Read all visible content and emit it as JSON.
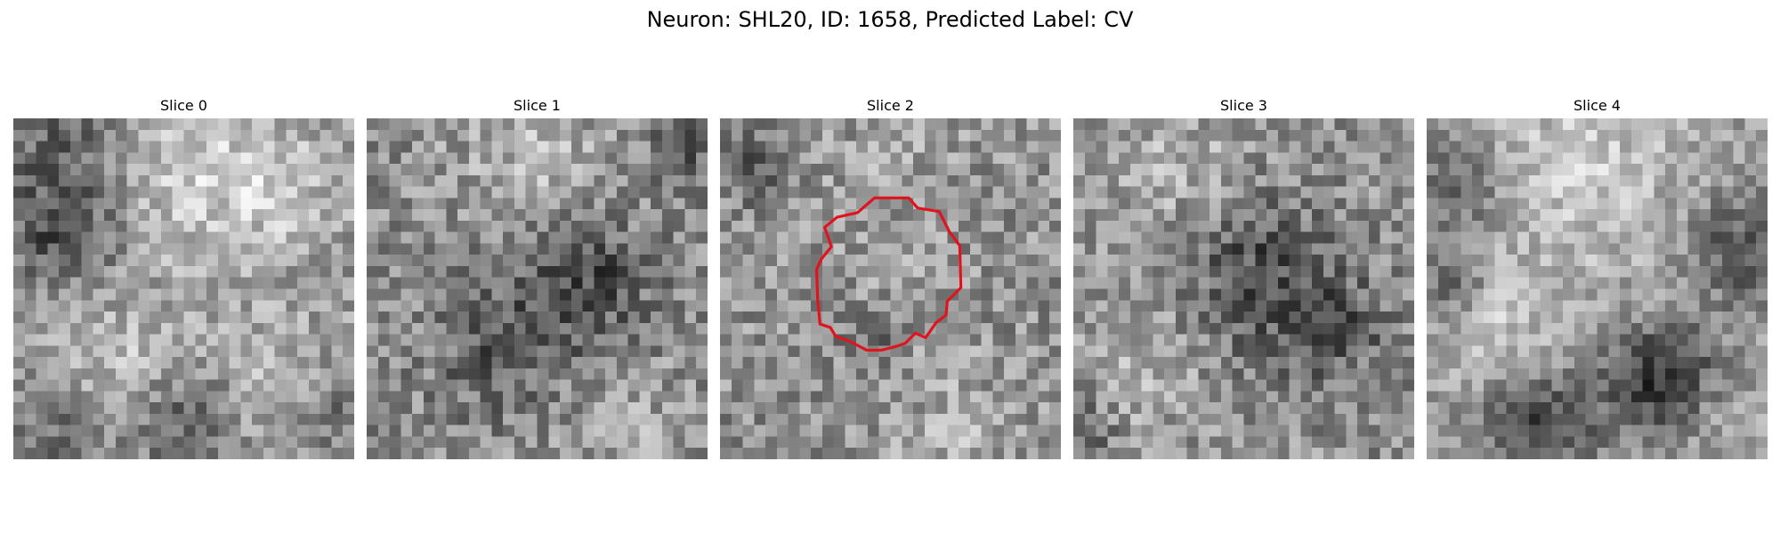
{
  "figure": {
    "title": "Neuron: SHL20, ID: 1658, Predicted Label: CV",
    "grid_size": 30,
    "colormap": "gray",
    "contour_color": "#e0141e",
    "panels": [
      {
        "title": "Slice 0",
        "seed": 11,
        "base": 150,
        "noise": 45,
        "blobs": [
          {
            "cx": 4,
            "cy": 2,
            "r": 5,
            "amp": -55
          },
          {
            "cx": 4,
            "cy": 10,
            "r": 3,
            "amp": -70
          },
          {
            "cx": 15,
            "cy": 4,
            "r": 6,
            "amp": 55
          },
          {
            "cx": 24,
            "cy": 6,
            "r": 4,
            "amp": 30
          },
          {
            "cx": 15,
            "cy": 26,
            "r": 3,
            "amp": -60
          },
          {
            "cx": 4,
            "cy": 27,
            "r": 3,
            "amp": -45
          },
          {
            "cx": 28,
            "cy": 25,
            "r": 3,
            "amp": -45
          },
          {
            "cx": 23,
            "cy": 23,
            "r": 4,
            "amp": 40
          },
          {
            "cx": 9,
            "cy": 21,
            "r": 4,
            "amp": 35
          }
        ]
      },
      {
        "title": "Slice 1",
        "seed": 23,
        "base": 140,
        "noise": 50,
        "blobs": [
          {
            "cx": 16,
            "cy": 16,
            "r": 5,
            "amp": -50
          },
          {
            "cx": 10,
            "cy": 21,
            "r": 3,
            "amp": -35
          },
          {
            "cx": 20,
            "cy": 13,
            "r": 3,
            "amp": -35
          },
          {
            "cx": 14,
            "cy": 3,
            "r": 5,
            "amp": 40
          },
          {
            "cx": 22,
            "cy": 26,
            "r": 4,
            "amp": 30
          },
          {
            "cx": 27,
            "cy": 2,
            "r": 2,
            "amp": -50
          }
        ]
      },
      {
        "title": "Slice 2",
        "seed": 37,
        "base": 145,
        "noise": 50,
        "blobs": [
          {
            "cx": 15,
            "cy": 14,
            "r": 5,
            "amp": 10
          },
          {
            "cx": 13,
            "cy": 19,
            "r": 2,
            "amp": -40
          },
          {
            "cx": 2,
            "cy": 4,
            "r": 2,
            "amp": -50
          },
          {
            "cx": 15,
            "cy": 2,
            "r": 4,
            "amp": 20
          },
          {
            "cx": 20,
            "cy": 27,
            "r": 4,
            "amp": 25
          }
        ],
        "contour": [
          [
            9.2,
            9.6
          ],
          [
            10.3,
            8.7
          ],
          [
            12.1,
            8.3
          ],
          [
            13.6,
            7.0
          ],
          [
            16.6,
            7.0
          ],
          [
            17.4,
            7.9
          ],
          [
            19.3,
            8.2
          ],
          [
            20.2,
            10.0
          ],
          [
            21.1,
            11.2
          ],
          [
            21.2,
            14.9
          ],
          [
            20.0,
            16.1
          ],
          [
            19.9,
            17.3
          ],
          [
            19.0,
            18.0
          ],
          [
            18.1,
            19.3
          ],
          [
            17.2,
            18.9
          ],
          [
            16.3,
            19.8
          ],
          [
            15.4,
            20.1
          ],
          [
            14.2,
            20.4
          ],
          [
            12.9,
            20.4
          ],
          [
            11.4,
            19.6
          ],
          [
            10.2,
            19.2
          ],
          [
            9.7,
            18.4
          ],
          [
            8.8,
            18.1
          ],
          [
            8.6,
            16.0
          ],
          [
            8.5,
            13.3
          ],
          [
            8.9,
            12.4
          ],
          [
            9.8,
            11.3
          ],
          [
            9.5,
            10.4
          ]
        ]
      },
      {
        "title": "Slice 3",
        "seed": 53,
        "base": 145,
        "noise": 50,
        "blobs": [
          {
            "cx": 15,
            "cy": 11,
            "r": 4,
            "amp": -40
          },
          {
            "cx": 18,
            "cy": 16,
            "r": 5,
            "amp": -45
          },
          {
            "cx": 23,
            "cy": 18,
            "r": 3,
            "amp": -40
          },
          {
            "cx": 8,
            "cy": 4,
            "r": 5,
            "amp": 30
          },
          {
            "cx": 6,
            "cy": 22,
            "r": 4,
            "amp": 25
          },
          {
            "cx": 0,
            "cy": 27,
            "r": 2,
            "amp": -50
          }
        ]
      },
      {
        "title": "Slice 4",
        "seed": 71,
        "base": 150,
        "noise": 40,
        "blobs": [
          {
            "cx": 13,
            "cy": 4,
            "r": 7,
            "amp": 50
          },
          {
            "cx": 21,
            "cy": 22,
            "r": 3,
            "amp": -80
          },
          {
            "cx": 18,
            "cy": 23,
            "r": 3,
            "amp": -40
          },
          {
            "cx": 2,
            "cy": 6,
            "r": 3,
            "amp": -55
          },
          {
            "cx": 2,
            "cy": 14,
            "r": 2,
            "amp": -55
          },
          {
            "cx": 27,
            "cy": 11,
            "r": 3,
            "amp": -70
          },
          {
            "cx": 8,
            "cy": 26,
            "r": 3,
            "amp": -45
          },
          {
            "cx": 11,
            "cy": 26,
            "r": 3,
            "amp": -45
          },
          {
            "cx": 6,
            "cy": 18,
            "r": 4,
            "amp": 40
          },
          {
            "cx": 26,
            "cy": 25,
            "r": 3,
            "amp": 20
          }
        ]
      }
    ]
  }
}
